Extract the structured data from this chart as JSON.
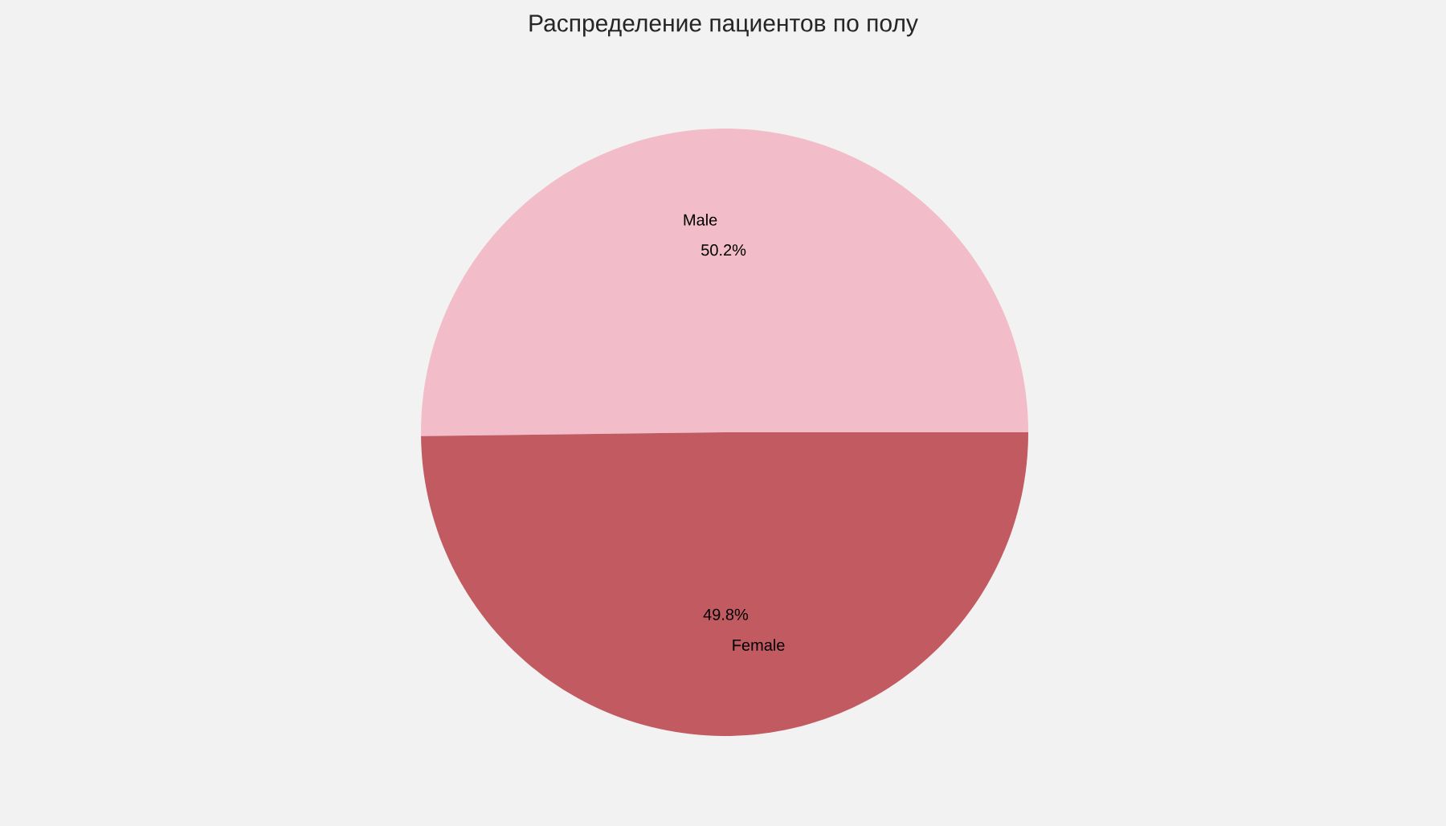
{
  "chart_data": {
    "type": "pie",
    "title": "Распределение пациентов по полу",
    "categories": [
      "Male",
      "Female"
    ],
    "values": [
      50.2,
      49.8
    ],
    "value_labels": [
      "50.2%",
      "49.8%"
    ],
    "colors": [
      "#f2bdc8",
      "#c25a62"
    ]
  }
}
